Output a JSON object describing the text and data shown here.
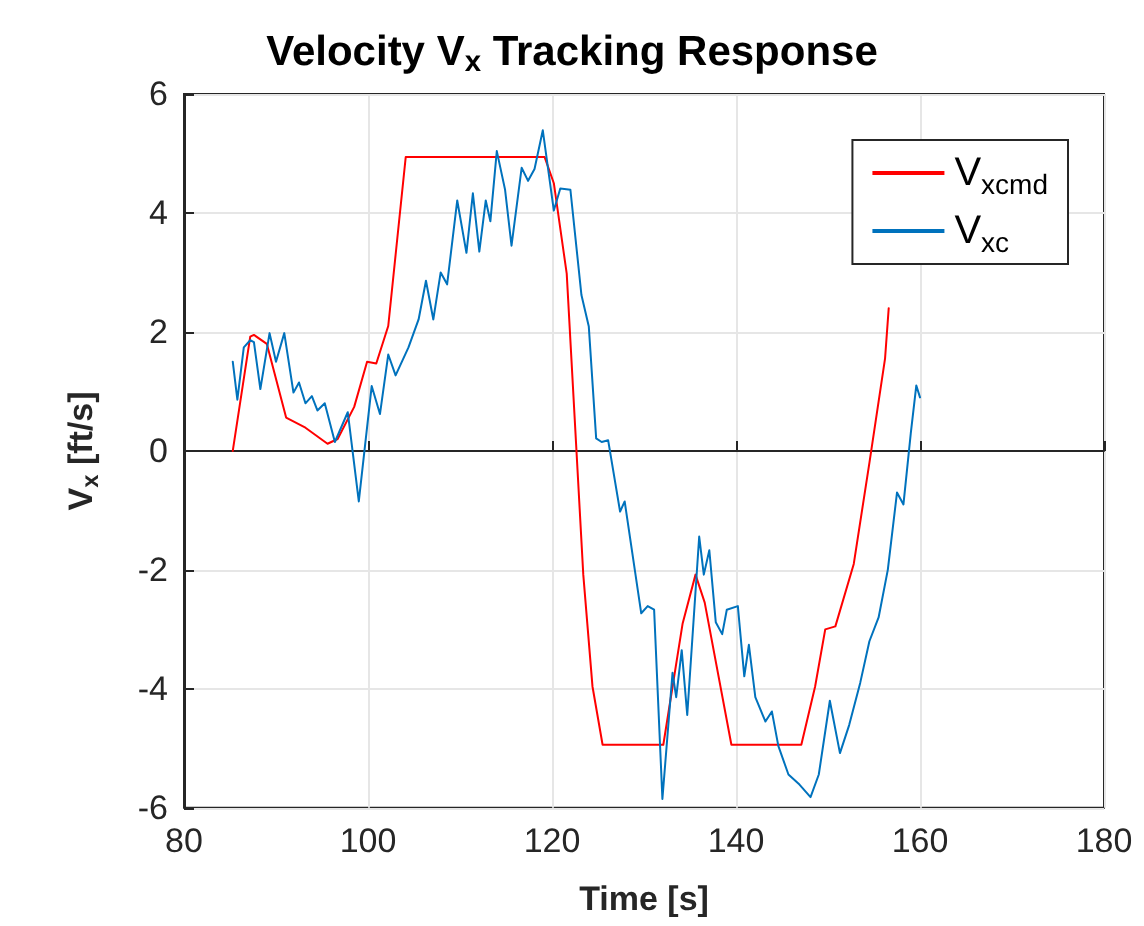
{
  "chart_data": {
    "type": "line",
    "title": "Velocity V$_{x}$ Tracking Response",
    "xlabel": "Time [s]",
    "ylabel": "V$_{x}$ [ft/s]",
    "xlim": [
      80,
      180
    ],
    "xticks": [
      80,
      100,
      120,
      140,
      160,
      180
    ],
    "ylim": [
      -6,
      6
    ],
    "yticks": [
      -6,
      -4,
      -2,
      0,
      2,
      4,
      6
    ],
    "grid": true,
    "legend": "top right",
    "marker": "none",
    "line_style": "solid",
    "series": [
      {
        "name": "V$_{xcmd}$",
        "color": "#ff0000",
        "x": [
          85.3,
          87.2,
          87.6,
          89.0,
          91.1,
          93.2,
          95.6,
          96.7,
          98.5,
          99.9,
          100.9,
          102.2,
          104.1,
          119.2,
          120.2,
          121.6,
          123.4,
          124.4,
          125.5,
          132.1,
          134.2,
          135.6,
          136.6,
          139.5,
          147.1,
          148.6,
          149.7,
          150.8,
          152.8,
          154.5,
          156.2,
          156.6
        ],
        "values": [
          0,
          1.92,
          1.95,
          1.8,
          0.56,
          0.39,
          0.12,
          0.2,
          0.74,
          1.5,
          1.47,
          2.1,
          4.94,
          4.94,
          4.5,
          2.98,
          -2.08,
          -3.96,
          -4.94,
          -4.94,
          -2.9,
          -2.08,
          -2.55,
          -4.94,
          -4.94,
          -3.96,
          -3.0,
          -2.95,
          -1.9,
          -0.2,
          1.55,
          2.4
        ]
      },
      {
        "name": "V$_{xc}$",
        "color": "#0072bd",
        "x": [
          85.3,
          85.8,
          86.5,
          87.2,
          87.6,
          88.3,
          89.3,
          90.0,
          90.9,
          91.9,
          92.5,
          93.2,
          93.9,
          94.5,
          95.3,
          96.4,
          97.8,
          99.0,
          100.4,
          101.3,
          102.2,
          103.0,
          104.4,
          105.5,
          106.3,
          107.1,
          107.9,
          108.6,
          109.7,
          110.7,
          111.4,
          112.1,
          112.8,
          113.3,
          114.0,
          114.9,
          115.6,
          116.7,
          117.4,
          118.1,
          119.0,
          120.2,
          120.9,
          122.0,
          123.2,
          124.0,
          124.8,
          125.4,
          126.1,
          127.4,
          127.9,
          129.7,
          130.4,
          131.1,
          132.0,
          133.1,
          133.5,
          134.1,
          134.7,
          136.0,
          136.5,
          137.1,
          137.8,
          138.5,
          139.0,
          140.2,
          140.9,
          141.4,
          142.1,
          143.2,
          143.9,
          144.6,
          145.7,
          146.9,
          148.1,
          149.0,
          150.2,
          151.3,
          152.3,
          153.5,
          154.5,
          155.5,
          156.5,
          157.5,
          158.2,
          159.0,
          159.6,
          160.0
        ],
        "values": [
          1.5,
          0.86,
          1.74,
          1.86,
          1.83,
          1.04,
          1.98,
          1.5,
          1.98,
          0.98,
          1.15,
          0.8,
          0.92,
          0.68,
          0.8,
          0.15,
          0.65,
          -0.85,
          1.09,
          0.62,
          1.62,
          1.27,
          1.74,
          2.21,
          2.86,
          2.21,
          3.0,
          2.8,
          4.21,
          3.33,
          4.33,
          3.35,
          4.21,
          3.86,
          5.04,
          4.39,
          3.45,
          4.76,
          4.54,
          4.74,
          5.39,
          4.04,
          4.41,
          4.39,
          2.62,
          2.09,
          0.21,
          0.15,
          0.18,
          -1.02,
          -0.85,
          -2.73,
          -2.61,
          -2.67,
          -5.85,
          -3.73,
          -4.14,
          -3.35,
          -4.44,
          -1.44,
          -2.08,
          -1.67,
          -2.88,
          -3.08,
          -2.67,
          -2.61,
          -3.79,
          -3.26,
          -4.14,
          -4.55,
          -4.38,
          -4.96,
          -5.44,
          -5.61,
          -5.82,
          -5.44,
          -4.2,
          -5.08,
          -4.61,
          -3.9,
          -3.2,
          -2.8,
          -2.0,
          -0.7,
          -0.9,
          0.3,
          1.1,
          0.9
        ]
      }
    ]
  }
}
